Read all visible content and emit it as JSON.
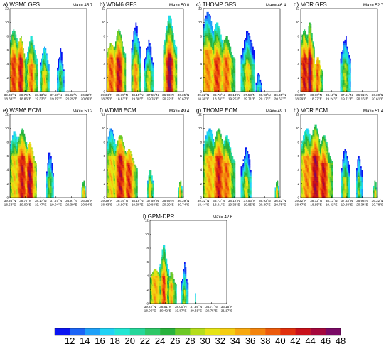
{
  "chart_data": {
    "type": "heatmap",
    "value_range": [
      11,
      49
    ],
    "y_ticks": [
      0,
      2,
      4,
      6,
      8,
      10,
      12
    ],
    "colorbar": {
      "labels": [
        "12",
        "14",
        "16",
        "18",
        "20",
        "22",
        "24",
        "26",
        "28",
        "30",
        "32",
        "34",
        "36",
        "38",
        "40",
        "42",
        "44",
        "46",
        "48"
      ],
      "colors": [
        "#0a14f2",
        "#1b64f6",
        "#1ea0f8",
        "#20d2f5",
        "#22e6d2",
        "#25d79a",
        "#2ec766",
        "#27b23c",
        "#6cc925",
        "#b5dd1c",
        "#e5e414",
        "#f5cd11",
        "#f7a80e",
        "#f3840c",
        "#ec5a0b",
        "#e1300c",
        "#c8101a",
        "#a5083c",
        "#7a0a66"
      ]
    },
    "panels": [
      {
        "label": "a) WSM6 GFS",
        "max": "Max= 45.7",
        "x_ticks": [
          [
            "39.38°N",
            "18.38°E"
          ],
          [
            "38.76°N",
            "18.86°E"
          ],
          [
            "38.13°N",
            "19.33°E"
          ],
          [
            "37.50°N",
            "19.79°E"
          ],
          [
            "36.92°N",
            "20.25°E"
          ],
          [
            "36.32°N",
            "20.66°E"
          ]
        ]
      },
      {
        "label": "b) WDM6 GFS",
        "max": "Max= 50.0",
        "x_ticks": [
          [
            "39.34°N",
            "18.35°E"
          ],
          [
            "38.75°N",
            "18.83°E"
          ],
          [
            "38.15°N",
            "19.30°E"
          ],
          [
            "37.55°N",
            "19.76°E"
          ],
          [
            "36.96°N",
            "20.22°E"
          ],
          [
            "36.35°N",
            "20.67°E"
          ]
        ]
      },
      {
        "label": "c) THOMP GFS",
        "max": "Max= 46.4",
        "x_ticks": [
          [
            "39.32°N",
            "18.30°E"
          ],
          [
            "38.73°N",
            "18.78°E"
          ],
          [
            "38.13°N",
            "19.25°E"
          ],
          [
            "37.53°N",
            "19.71°E"
          ],
          [
            "36.93°N",
            "20.17°E"
          ],
          [
            "36.35°N",
            "20.62°E"
          ]
        ]
      },
      {
        "label": "d) MOR GFS",
        "max": "Max= 52.7",
        "x_ticks": [
          [
            "39.30°N",
            "18.29°E"
          ],
          [
            "38.70°N",
            "18.77°E"
          ],
          [
            "38.11°N",
            "19.24°E"
          ],
          [
            "37.51°N",
            "19.71°E"
          ],
          [
            "36.91°N",
            "20.16°E"
          ],
          [
            "36.30°N",
            "20.61°E"
          ]
        ]
      },
      {
        "label": "e) WSM6 ECM",
        "max": "Max= 50.2",
        "x_ticks": [
          [
            "39.36°N",
            "18.53°E"
          ],
          [
            "38.77°N",
            "19.00°E"
          ],
          [
            "38.17°N",
            "19.47°E"
          ],
          [
            "37.57°N",
            "19.94°E"
          ],
          [
            "36.97°N",
            "20.39°E"
          ],
          [
            "36.36°N",
            "20.84°E"
          ]
        ]
      },
      {
        "label": "f) WDM6 ECM",
        "max": "Max= 49.4",
        "x_ticks": [
          [
            "39.39°N",
            "18.43°E"
          ],
          [
            "38.79°N",
            "18.90°E"
          ],
          [
            "38.19°N",
            "19.38°E"
          ],
          [
            "37.59°N",
            "19.84°E"
          ],
          [
            "36.99°N",
            "20.29°E"
          ],
          [
            "36.39°N",
            "20.74°E"
          ]
        ]
      },
      {
        "label": "g) THOMP ECM",
        "max": "Max= 49.0",
        "x_ticks": [
          [
            "39.32°N",
            "18.44°E"
          ],
          [
            "38.72°N",
            "18.91°E"
          ],
          [
            "38.12°N",
            "19.38°E"
          ],
          [
            "37.53°N",
            "19.85°E"
          ],
          [
            "36.93°N",
            "20.30°E"
          ],
          [
            "36.32°N",
            "20.75°E"
          ]
        ]
      },
      {
        "label": "h) MOR ECM",
        "max": "Max= 51.4",
        "x_ticks": [
          [
            "39.32°N",
            "18.47°E"
          ],
          [
            "38.72°N",
            "18.95°E"
          ],
          [
            "38.13°N",
            "19.42°E"
          ],
          [
            "37.53°N",
            "19.88°E"
          ],
          [
            "36.93°N",
            "20.34°E"
          ],
          [
            "36.32°N",
            "20.78°E"
          ]
        ]
      },
      {
        "label": "i) GPM-DPR",
        "max": "Max= 42.6",
        "x_ticks": [
          [
            "39.22°N",
            "18.96°E"
          ],
          [
            "38.61°N",
            "19.42°E"
          ],
          [
            "38.00°N",
            "19.87°E"
          ],
          [
            "37.39°N",
            "20.31°E"
          ],
          [
            "36.77°N",
            "20.75°E"
          ],
          [
            "36.15°N",
            "21.17°E"
          ]
        ]
      }
    ]
  }
}
